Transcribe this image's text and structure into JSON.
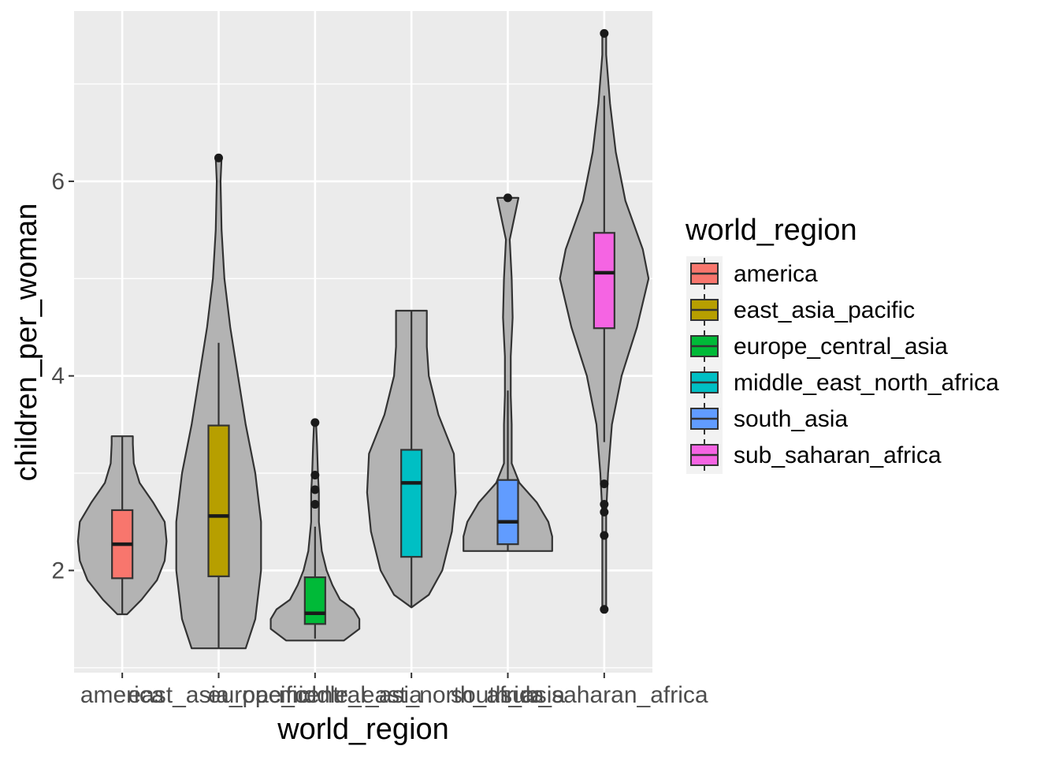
{
  "chart_data": {
    "type": "violin",
    "xlabel": "world_region",
    "ylabel": "children_per_woman",
    "ylim": [
      0.95,
      7.75
    ],
    "y_ticks": [
      2,
      4,
      6
    ],
    "y_tick_labels": [
      "2",
      "4",
      "6"
    ],
    "grid": true,
    "legend_position": "right",
    "legend_title": "world_region",
    "violin_color": "#B3B3B3",
    "categories": [
      "america",
      "east_asia_pacific",
      "europe_central_asia",
      "middle_east_north_africa",
      "south_asia",
      "sub_saharan_africa"
    ],
    "groups": [
      {
        "name": "america",
        "color": "#F8766D",
        "box": {
          "q1": 1.92,
          "median": 2.27,
          "q3": 2.62,
          "whisker_low": 1.55,
          "whisker_high": 3.38
        },
        "outliers": [],
        "violin": [
          [
            1.55,
            0.05
          ],
          [
            1.7,
            0.2
          ],
          [
            1.9,
            0.36
          ],
          [
            2.1,
            0.44
          ],
          [
            2.3,
            0.46
          ],
          [
            2.5,
            0.44
          ],
          [
            2.7,
            0.32
          ],
          [
            2.9,
            0.18
          ],
          [
            3.1,
            0.12
          ],
          [
            3.3,
            0.11
          ],
          [
            3.38,
            0.11
          ]
        ]
      },
      {
        "name": "east_asia_pacific",
        "color": "#B79F00",
        "box": {
          "q1": 1.94,
          "median": 2.56,
          "q3": 3.49,
          "whisker_low": 1.2,
          "whisker_high": 4.34
        },
        "outliers": [
          6.24
        ],
        "violin": [
          [
            1.2,
            0.28
          ],
          [
            1.5,
            0.38
          ],
          [
            2.0,
            0.44
          ],
          [
            2.5,
            0.44
          ],
          [
            3.0,
            0.38
          ],
          [
            3.5,
            0.28
          ],
          [
            4.0,
            0.2
          ],
          [
            4.5,
            0.12
          ],
          [
            5.0,
            0.06
          ],
          [
            5.5,
            0.03
          ],
          [
            6.0,
            0.02
          ],
          [
            6.24,
            0.03
          ]
        ]
      },
      {
        "name": "europe_central_asia",
        "color": "#00BA38",
        "box": {
          "q1": 1.45,
          "median": 1.56,
          "q3": 1.93,
          "whisker_low": 1.3,
          "whisker_high": 2.45
        },
        "outliers": [
          2.68,
          2.83,
          2.98,
          3.52
        ],
        "violin": [
          [
            1.28,
            0.3
          ],
          [
            1.4,
            0.46
          ],
          [
            1.5,
            0.46
          ],
          [
            1.6,
            0.4
          ],
          [
            1.7,
            0.26
          ],
          [
            1.85,
            0.18
          ],
          [
            2.0,
            0.12
          ],
          [
            2.2,
            0.07
          ],
          [
            2.5,
            0.04
          ],
          [
            2.8,
            0.04
          ],
          [
            3.0,
            0.03
          ],
          [
            3.3,
            0.02
          ],
          [
            3.52,
            0.01
          ]
        ]
      },
      {
        "name": "middle_east_north_africa",
        "color": "#00BFC4",
        "box": {
          "q1": 2.14,
          "median": 2.9,
          "q3": 3.24,
          "whisker_low": 1.62,
          "whisker_high": 4.67
        },
        "outliers": [],
        "violin": [
          [
            1.62,
            0.0
          ],
          [
            1.75,
            0.18
          ],
          [
            2.0,
            0.32
          ],
          [
            2.4,
            0.42
          ],
          [
            2.8,
            0.46
          ],
          [
            3.2,
            0.44
          ],
          [
            3.6,
            0.28
          ],
          [
            4.0,
            0.18
          ],
          [
            4.3,
            0.16
          ],
          [
            4.67,
            0.16
          ]
        ]
      },
      {
        "name": "south_asia",
        "color": "#619CFF",
        "box": {
          "q1": 2.27,
          "median": 2.5,
          "q3": 2.93,
          "whisker_low": 2.2,
          "whisker_high": 3.85
        },
        "outliers": [
          5.83
        ],
        "violin": [
          [
            2.2,
            0.46
          ],
          [
            2.35,
            0.46
          ],
          [
            2.5,
            0.42
          ],
          [
            2.7,
            0.3
          ],
          [
            2.9,
            0.12
          ],
          [
            3.1,
            0.04
          ],
          [
            3.5,
            0.04
          ],
          [
            3.8,
            0.03
          ],
          [
            4.2,
            0.03
          ],
          [
            4.6,
            0.05
          ],
          [
            5.0,
            0.04
          ],
          [
            5.4,
            0.02
          ],
          [
            5.83,
            0.11
          ]
        ]
      },
      {
        "name": "sub_saharan_africa",
        "color": "#F564E3",
        "box": {
          "q1": 4.49,
          "median": 5.06,
          "q3": 5.47,
          "whisker_low": 3.32,
          "whisker_high": 6.88
        },
        "outliers": [
          1.6,
          2.36,
          2.6,
          2.68,
          2.89,
          7.52
        ],
        "violin": [
          [
            1.6,
            0.02
          ],
          [
            2.2,
            0.02
          ],
          [
            2.6,
            0.02
          ],
          [
            3.0,
            0.04
          ],
          [
            3.5,
            0.08
          ],
          [
            4.0,
            0.18
          ],
          [
            4.5,
            0.34
          ],
          [
            5.0,
            0.46
          ],
          [
            5.3,
            0.4
          ],
          [
            5.8,
            0.22
          ],
          [
            6.3,
            0.12
          ],
          [
            6.8,
            0.06
          ],
          [
            7.3,
            0.02
          ],
          [
            7.52,
            0.02
          ]
        ]
      }
    ]
  }
}
